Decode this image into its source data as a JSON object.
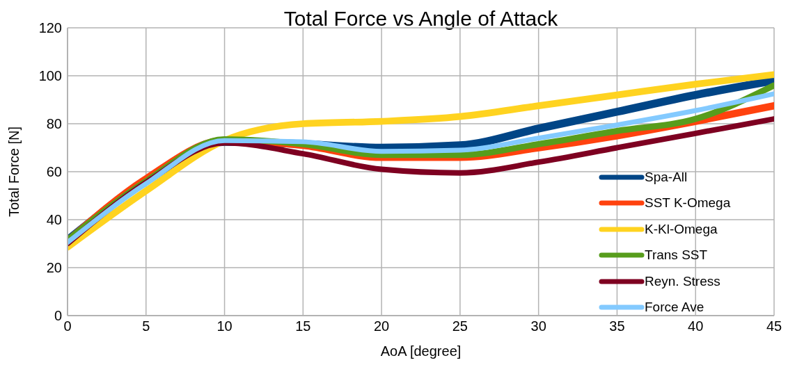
{
  "chart_data": {
    "type": "line",
    "title": "Total Force vs Angle of Attack",
    "xlabel": "AoA [degree]",
    "ylabel": "Total Force [N]",
    "x": [
      0,
      5,
      10,
      15,
      20,
      25,
      30,
      35,
      40,
      45
    ],
    "series": [
      {
        "name": "Spa-All",
        "color": "#004586",
        "values": [
          31.5,
          56,
          72.5,
          71.5,
          70,
          71,
          78,
          85,
          92,
          98
        ]
      },
      {
        "name": "SST K-Omega",
        "color": "#ff420e",
        "values": [
          31,
          57,
          73,
          71,
          66,
          66,
          70,
          75,
          81,
          87.5
        ]
      },
      {
        "name": "K-Kl-Omega",
        "color": "#ffd320",
        "values": [
          28.5,
          52,
          73,
          80,
          81,
          83,
          87.5,
          92,
          96.5,
          100.5
        ]
      },
      {
        "name": "Trans SST",
        "color": "#579d1c",
        "values": [
          31.5,
          56,
          73.5,
          71.5,
          67,
          67,
          71.5,
          77,
          82,
          96
        ]
      },
      {
        "name": "Reyn. Stress",
        "color": "#7e0021",
        "values": [
          30,
          55.5,
          72,
          67.5,
          61,
          59.5,
          64,
          70,
          76,
          82
        ]
      },
      {
        "name": "Force Ave",
        "color": "#83caff",
        "values": [
          30.5,
          55,
          73,
          72.5,
          68.5,
          69,
          74,
          79.5,
          85.5,
          92.5
        ]
      }
    ],
    "xlim": [
      0,
      45
    ],
    "xticks": [
      0,
      5,
      10,
      15,
      20,
      25,
      30,
      35,
      40,
      45
    ],
    "ylim": [
      0,
      120
    ],
    "yticks": [
      0,
      20,
      40,
      60,
      80,
      100,
      120
    ],
    "grid": true,
    "legend": "right",
    "marker": "none",
    "line_style": "solid"
  }
}
